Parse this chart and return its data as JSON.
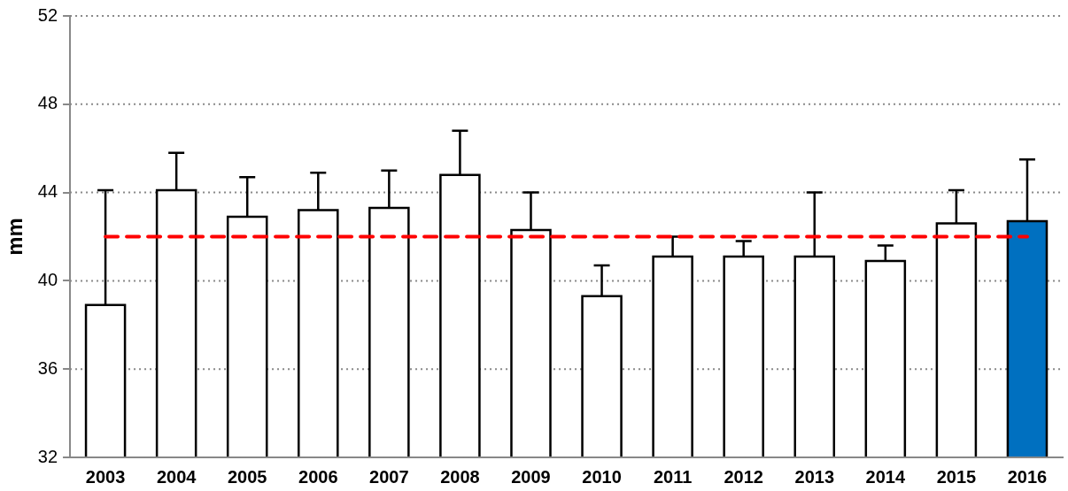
{
  "chart_data": {
    "type": "bar",
    "ylabel": "mm",
    "categories": [
      "2003",
      "2004",
      "2005",
      "2006",
      "2007",
      "2008",
      "2009",
      "2010",
      "2011",
      "2012",
      "2013",
      "2014",
      "2015",
      "2016"
    ],
    "values": [
      38.9,
      44.1,
      42.9,
      43.2,
      43.3,
      44.8,
      42.3,
      39.3,
      41.1,
      41.1,
      41.1,
      40.9,
      42.6,
      42.7
    ],
    "colors": [
      "#ffffff",
      "#ffffff",
      "#ffffff",
      "#ffffff",
      "#ffffff",
      "#ffffff",
      "#ffffff",
      "#ffffff",
      "#ffffff",
      "#ffffff",
      "#ffffff",
      "#ffffff",
      "#ffffff",
      "#0070c0"
    ],
    "errors": [
      [
        38.9,
        44.1
      ],
      [
        44.1,
        45.8
      ],
      [
        42.9,
        44.7
      ],
      [
        43.2,
        44.9
      ],
      [
        43.3,
        45.0
      ],
      [
        44.8,
        46.8
      ],
      [
        42.3,
        44.0
      ],
      [
        39.3,
        40.7
      ],
      [
        41.1,
        42.0
      ],
      [
        41.1,
        41.8
      ],
      [
        41.1,
        44.0
      ],
      [
        40.9,
        41.6
      ],
      [
        42.6,
        44.1
      ],
      [
        42.7,
        45.5
      ]
    ],
    "ylim": [
      32,
      52
    ],
    "yticks": [
      32,
      36,
      40,
      44,
      48,
      52
    ],
    "grid": "y",
    "legend": false,
    "ref_lines": [
      {
        "axis": "y",
        "value": 42,
        "color": "#ff0000",
        "line_style": "dashed"
      }
    ]
  }
}
